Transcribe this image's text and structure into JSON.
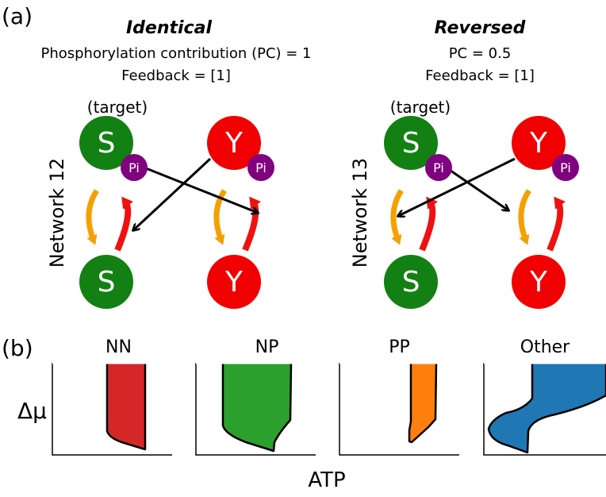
{
  "panel_a": {
    "label": "(a)",
    "left": {
      "title": "Identical",
      "line1": "Phosphorylation contribution (PC) = 1",
      "line2": "Feedback = [1]",
      "target": "(target)",
      "network": "Network 12"
    },
    "right": {
      "title": "Reversed",
      "line1": "PC = 0.5",
      "line2": "Feedback = [1]",
      "target": "(target)",
      "network": "Network 13"
    },
    "nodes": {
      "s": "S",
      "y": "Y",
      "pi": "Pi"
    },
    "colors": {
      "s": "#128012",
      "y": "#f00000",
      "pi": "#800080",
      "dephos_arrow": "#f5a000",
      "phos_arrow": "#f01010"
    }
  },
  "panel_b": {
    "label": "(b)",
    "ylabel": "Δμ",
    "xlabel": "ATP",
    "panels": [
      {
        "title": "NN",
        "color": "#d62728"
      },
      {
        "title": "NP",
        "color": "#2ca02c"
      },
      {
        "title": "PP",
        "color": "#ff7f0e"
      },
      {
        "title": "Other",
        "color": "#1f77b4"
      }
    ]
  }
}
